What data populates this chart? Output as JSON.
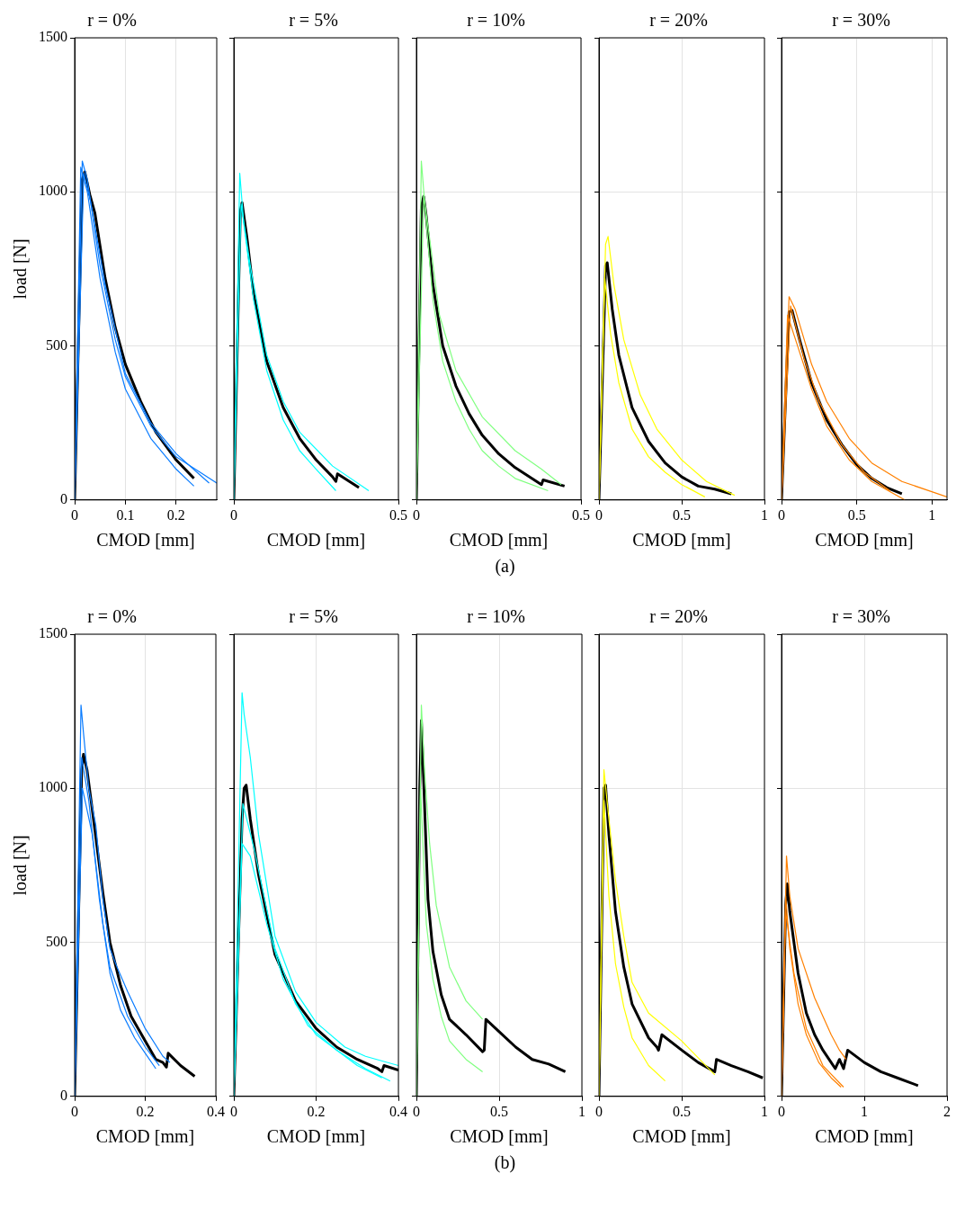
{
  "chart_data": [
    {
      "type": "line",
      "title": "r = 0%",
      "xlabel": "CMOD [mm]",
      "ylabel": "load [N]",
      "xlim": [
        0,
        0.28
      ],
      "xticks": [
        0,
        0.1,
        0.2
      ],
      "ylim": [
        0,
        1500
      ],
      "yticks": [
        0,
        500,
        1000,
        1500
      ],
      "grid": true,
      "legend": false,
      "annotations": [
        "(a)"
      ],
      "series": [
        {
          "color": "#0a7cff",
          "x": [
            0,
            0.015,
            0.025,
            0.05,
            0.08,
            0.1,
            0.15,
            0.2,
            0.28
          ],
          "values": [
            0,
            1100,
            1040,
            760,
            520,
            400,
            240,
            140,
            55
          ]
        },
        {
          "color": "#0a7cff",
          "x": [
            0,
            0.012,
            0.025,
            0.05,
            0.08,
            0.1,
            0.15,
            0.2,
            0.235
          ],
          "values": [
            0,
            1080,
            1000,
            720,
            480,
            360,
            200,
            100,
            45
          ]
        },
        {
          "color": "#0a7cff",
          "x": [
            0,
            0.018,
            0.03,
            0.06,
            0.1,
            0.15,
            0.2,
            0.265
          ],
          "values": [
            0,
            1060,
            980,
            700,
            410,
            250,
            150,
            55
          ]
        },
        {
          "color": "#000000",
          "x": [
            0,
            0.015,
            0.02,
            0.03,
            0.04,
            0.06,
            0.08,
            0.1,
            0.13,
            0.16,
            0.2,
            0.235
          ],
          "values": [
            0,
            1040,
            1065,
            990,
            930,
            720,
            560,
            440,
            320,
            220,
            130,
            70
          ]
        }
      ]
    },
    {
      "type": "line",
      "title": "r = 5%",
      "xlabel": "CMOD [mm]",
      "xlim": [
        0,
        0.5
      ],
      "xticks": [
        0,
        0.5
      ],
      "ylim": [
        0,
        1500
      ],
      "yticks": [
        0,
        500,
        1000,
        1500
      ],
      "grid": true,
      "legend": false,
      "tick_labels": "x",
      "series": [
        {
          "color": "#00ffff",
          "x": [
            0,
            0.018,
            0.03,
            0.06,
            0.1,
            0.15,
            0.2,
            0.25,
            0.31
          ],
          "values": [
            0,
            1060,
            900,
            650,
            420,
            260,
            160,
            100,
            30
          ]
        },
        {
          "color": "#00ffff",
          "x": [
            0,
            0.022,
            0.05,
            0.1,
            0.15,
            0.2,
            0.3,
            0.41
          ],
          "values": [
            0,
            960,
            760,
            470,
            320,
            220,
            110,
            30
          ]
        },
        {
          "color": "#000000",
          "x": [
            0,
            0.02,
            0.025,
            0.04,
            0.06,
            0.1,
            0.15,
            0.2,
            0.25,
            0.3,
            0.31,
            0.315,
            0.38
          ],
          "values": [
            0,
            940,
            965,
            850,
            670,
            450,
            300,
            200,
            130,
            75,
            60,
            85,
            40
          ]
        }
      ]
    },
    {
      "type": "line",
      "title": "r = 10%",
      "xlabel": "CMOD [mm]",
      "xlim": [
        0,
        0.5
      ],
      "xticks": [
        0,
        0.5
      ],
      "ylim": [
        0,
        1500
      ],
      "yticks": [
        0,
        500,
        1000,
        1500
      ],
      "grid": true,
      "legend": false,
      "tick_labels": "x",
      "series": [
        {
          "color": "#80ff80",
          "x": [
            0,
            0.015,
            0.03,
            0.05,
            0.08,
            0.12,
            0.16,
            0.2,
            0.25,
            0.3,
            0.4
          ],
          "values": [
            0,
            1100,
            900,
            650,
            450,
            320,
            230,
            160,
            110,
            70,
            30
          ]
        },
        {
          "color": "#80ff80",
          "x": [
            0,
            0.022,
            0.04,
            0.07,
            0.12,
            0.2,
            0.3,
            0.38,
            0.44
          ],
          "values": [
            0,
            990,
            850,
            600,
            420,
            270,
            160,
            100,
            50
          ]
        },
        {
          "color": "#000000",
          "x": [
            0,
            0.015,
            0.022,
            0.03,
            0.05,
            0.08,
            0.12,
            0.16,
            0.2,
            0.25,
            0.3,
            0.38,
            0.385,
            0.45
          ],
          "values": [
            0,
            950,
            985,
            920,
            700,
            500,
            370,
            280,
            210,
            150,
            105,
            50,
            65,
            45
          ]
        }
      ]
    },
    {
      "type": "line",
      "title": "r = 20%",
      "xlabel": "CMOD [mm]",
      "xlim": [
        0,
        1
      ],
      "xticks": [
        0,
        0.5,
        1
      ],
      "ylim": [
        0,
        1500
      ],
      "yticks": [
        0,
        500,
        1000,
        1500
      ],
      "grid": true,
      "legend": false,
      "tick_labels": "x",
      "series": [
        {
          "color": "#ffff00",
          "x": [
            0,
            0.04,
            0.055,
            0.09,
            0.15,
            0.25,
            0.35,
            0.5,
            0.65,
            0.82
          ],
          "values": [
            0,
            830,
            855,
            700,
            520,
            340,
            230,
            130,
            60,
            15
          ]
        },
        {
          "color": "#ffff00",
          "x": [
            0,
            0.035,
            0.07,
            0.12,
            0.2,
            0.3,
            0.4,
            0.5,
            0.64
          ],
          "values": [
            0,
            720,
            540,
            380,
            230,
            140,
            90,
            50,
            10
          ]
        },
        {
          "color": "#000000",
          "x": [
            0,
            0.04,
            0.05,
            0.08,
            0.12,
            0.2,
            0.3,
            0.4,
            0.5,
            0.6,
            0.7,
            0.8
          ],
          "values": [
            0,
            760,
            770,
            620,
            470,
            300,
            190,
            120,
            75,
            45,
            35,
            20
          ]
        }
      ]
    },
    {
      "type": "line",
      "title": "r = 30%",
      "xlabel": "CMOD [mm]",
      "xlim": [
        0,
        1.1
      ],
      "xticks": [
        0,
        0.5,
        1
      ],
      "ylim": [
        0,
        1500
      ],
      "yticks": [
        0,
        500,
        1000,
        1500
      ],
      "grid": true,
      "legend": false,
      "tick_labels": "x",
      "series": [
        {
          "color": "#ff8000",
          "x": [
            0,
            0.05,
            0.09,
            0.2,
            0.3,
            0.45,
            0.6,
            0.8,
            1.1
          ],
          "values": [
            0,
            660,
            620,
            440,
            320,
            200,
            120,
            60,
            10
          ]
        },
        {
          "color": "#ff8000",
          "x": [
            0,
            0.04,
            0.1,
            0.2,
            0.3,
            0.45,
            0.6,
            0.82
          ],
          "values": [
            0,
            600,
            510,
            360,
            240,
            130,
            60,
            0
          ]
        },
        {
          "color": "#ff8000",
          "x": [
            0,
            0.06,
            0.15,
            0.25,
            0.4,
            0.55,
            0.72
          ],
          "values": [
            0,
            630,
            460,
            320,
            180,
            90,
            30
          ]
        },
        {
          "color": "#000000",
          "x": [
            0,
            0.05,
            0.07,
            0.12,
            0.2,
            0.3,
            0.4,
            0.5,
            0.6,
            0.7,
            0.8
          ],
          "values": [
            0,
            610,
            615,
            520,
            380,
            260,
            180,
            115,
            70,
            40,
            20
          ]
        }
      ]
    },
    {
      "type": "line",
      "title": "r = 0%",
      "xlabel": "CMOD [mm]",
      "ylabel": "load [N]",
      "xlim": [
        0,
        0.4
      ],
      "xticks": [
        0,
        0.2,
        0.4
      ],
      "ylim": [
        0,
        1500
      ],
      "yticks": [
        0,
        500,
        1000,
        1500
      ],
      "grid": true,
      "legend": false,
      "annotations": [
        "(b)"
      ],
      "series": [
        {
          "color": "#0a7cff",
          "x": [
            0,
            0.018,
            0.025,
            0.04,
            0.06,
            0.08,
            0.1,
            0.12,
            0.15,
            0.2,
            0.25,
            0.27
          ],
          "values": [
            0,
            1270,
            1180,
            1000,
            880,
            640,
            480,
            420,
            340,
            220,
            130,
            110
          ]
        },
        {
          "color": "#0a7cff",
          "x": [
            0,
            0.02,
            0.04,
            0.07,
            0.1,
            0.13,
            0.17,
            0.2,
            0.23
          ],
          "values": [
            0,
            1100,
            960,
            640,
            400,
            280,
            190,
            140,
            90
          ]
        },
        {
          "color": "#0a7cff",
          "x": [
            0,
            0.022,
            0.05,
            0.08,
            0.1,
            0.15,
            0.2,
            0.24
          ],
          "values": [
            0,
            1000,
            850,
            560,
            420,
            260,
            160,
            100
          ]
        },
        {
          "color": "#000000",
          "x": [
            0,
            0.02,
            0.025,
            0.035,
            0.05,
            0.08,
            0.1,
            0.13,
            0.16,
            0.2,
            0.23,
            0.25,
            0.26,
            0.265,
            0.3,
            0.34
          ],
          "values": [
            0,
            1060,
            1110,
            1060,
            930,
            660,
            500,
            360,
            260,
            180,
            120,
            110,
            95,
            140,
            100,
            65
          ]
        }
      ]
    },
    {
      "type": "line",
      "title": "r = 5%",
      "xlabel": "CMOD [mm]",
      "xlim": [
        0,
        0.4
      ],
      "xticks": [
        0,
        0.2,
        0.4
      ],
      "ylim": [
        0,
        1500
      ],
      "yticks": [
        0,
        500,
        1000,
        1500
      ],
      "grid": true,
      "legend": false,
      "tick_labels": "x",
      "series": [
        {
          "color": "#00ffff",
          "x": [
            0,
            0.02,
            0.025,
            0.04,
            0.06,
            0.1,
            0.15,
            0.2,
            0.27,
            0.32,
            0.4
          ],
          "values": [
            0,
            1310,
            1240,
            1100,
            850,
            520,
            340,
            240,
            160,
            130,
            100
          ]
        },
        {
          "color": "#00ffff",
          "x": [
            0,
            0.02,
            0.04,
            0.08,
            0.12,
            0.18,
            0.25,
            0.32,
            0.38
          ],
          "values": [
            0,
            820,
            780,
            560,
            380,
            230,
            150,
            90,
            50
          ]
        },
        {
          "color": "#00ffff",
          "x": [
            0,
            0.022,
            0.05,
            0.1,
            0.15,
            0.2,
            0.3,
            0.36
          ],
          "values": [
            0,
            950,
            800,
            480,
            300,
            200,
            100,
            60
          ]
        },
        {
          "color": "#000000",
          "x": [
            0,
            0.02,
            0.025,
            0.03,
            0.04,
            0.06,
            0.1,
            0.15,
            0.2,
            0.25,
            0.3,
            0.35,
            0.36,
            0.365,
            0.4
          ],
          "values": [
            0,
            900,
            1000,
            1010,
            900,
            720,
            460,
            310,
            220,
            160,
            120,
            90,
            80,
            100,
            85
          ]
        }
      ]
    },
    {
      "type": "line",
      "title": "r = 10%",
      "xlabel": "CMOD [mm]",
      "xlim": [
        0,
        1
      ],
      "xticks": [
        0,
        0.5,
        1
      ],
      "ylim": [
        0,
        1500
      ],
      "yticks": [
        0,
        500,
        1000,
        1500
      ],
      "grid": true,
      "legend": false,
      "tick_labels": "x",
      "series": [
        {
          "color": "#80ff80",
          "x": [
            0,
            0.03,
            0.05,
            0.08,
            0.12,
            0.2,
            0.3,
            0.4
          ],
          "values": [
            0,
            1270,
            1050,
            820,
            620,
            420,
            310,
            250
          ]
        },
        {
          "color": "#80ff80",
          "x": [
            0,
            0.025,
            0.06,
            0.1,
            0.15,
            0.2,
            0.3,
            0.4
          ],
          "values": [
            0,
            1000,
            560,
            380,
            260,
            180,
            120,
            80
          ]
        },
        {
          "color": "#000000",
          "x": [
            0,
            0.02,
            0.03,
            0.04,
            0.07,
            0.1,
            0.15,
            0.2,
            0.3,
            0.4,
            0.41,
            0.42,
            0.5,
            0.6,
            0.7,
            0.8,
            0.9
          ],
          "values": [
            0,
            1000,
            1220,
            1080,
            640,
            470,
            330,
            250,
            200,
            145,
            150,
            250,
            210,
            160,
            120,
            105,
            80
          ]
        }
      ]
    },
    {
      "type": "line",
      "title": "r = 20%",
      "xlabel": "CMOD [mm]",
      "xlim": [
        0,
        1
      ],
      "xticks": [
        0,
        0.5,
        1
      ],
      "ylim": [
        0,
        1500
      ],
      "yticks": [
        0,
        500,
        1000,
        1500
      ],
      "grid": true,
      "legend": false,
      "tick_labels": "x",
      "series": [
        {
          "color": "#ffff00",
          "x": [
            0,
            0.03,
            0.06,
            0.1,
            0.15,
            0.2,
            0.3,
            0.5,
            0.7
          ],
          "values": [
            0,
            1060,
            900,
            700,
            520,
            370,
            270,
            180,
            70
          ]
        },
        {
          "color": "#ffff00",
          "x": [
            0,
            0.03,
            0.06,
            0.1,
            0.15,
            0.2,
            0.3,
            0.4
          ],
          "values": [
            0,
            960,
            650,
            430,
            290,
            190,
            100,
            50
          ]
        },
        {
          "color": "#000000",
          "x": [
            0,
            0.03,
            0.04,
            0.06,
            0.1,
            0.15,
            0.2,
            0.3,
            0.35,
            0.36,
            0.38,
            0.5,
            0.6,
            0.7,
            0.71,
            0.8,
            0.9,
            0.99
          ],
          "values": [
            0,
            1000,
            1010,
            850,
            600,
            420,
            300,
            190,
            160,
            150,
            200,
            150,
            110,
            80,
            120,
            100,
            80,
            60
          ]
        }
      ]
    },
    {
      "type": "line",
      "title": "r = 30%",
      "xlabel": "CMOD [mm]",
      "xlim": [
        0,
        2
      ],
      "xticks": [
        0,
        1,
        2
      ],
      "ylim": [
        0,
        1500
      ],
      "yticks": [
        0,
        500,
        1000,
        1500
      ],
      "grid": true,
      "legend": false,
      "tick_labels": "x",
      "series": [
        {
          "color": "#ff8000",
          "x": [
            0,
            0.06,
            0.1,
            0.2,
            0.4,
            0.6,
            0.7,
            0.78
          ],
          "values": [
            0,
            780,
            650,
            480,
            320,
            200,
            150,
            120
          ]
        },
        {
          "color": "#ff8000",
          "x": [
            0,
            0.05,
            0.1,
            0.2,
            0.3,
            0.45,
            0.6,
            0.72
          ],
          "values": [
            0,
            650,
            480,
            300,
            200,
            110,
            60,
            30
          ]
        },
        {
          "color": "#ff8000",
          "x": [
            0,
            0.05,
            0.15,
            0.3,
            0.5,
            0.75
          ],
          "values": [
            0,
            600,
            400,
            220,
            100,
            30
          ]
        },
        {
          "color": "#000000",
          "x": [
            0,
            0.05,
            0.07,
            0.1,
            0.2,
            0.3,
            0.4,
            0.5,
            0.6,
            0.65,
            0.7,
            0.75,
            0.8,
            1,
            1.2,
            1.4,
            1.65
          ],
          "values": [
            0,
            620,
            690,
            600,
            400,
            270,
            200,
            150,
            110,
            90,
            120,
            90,
            150,
            110,
            80,
            60,
            35
          ]
        }
      ]
    }
  ]
}
